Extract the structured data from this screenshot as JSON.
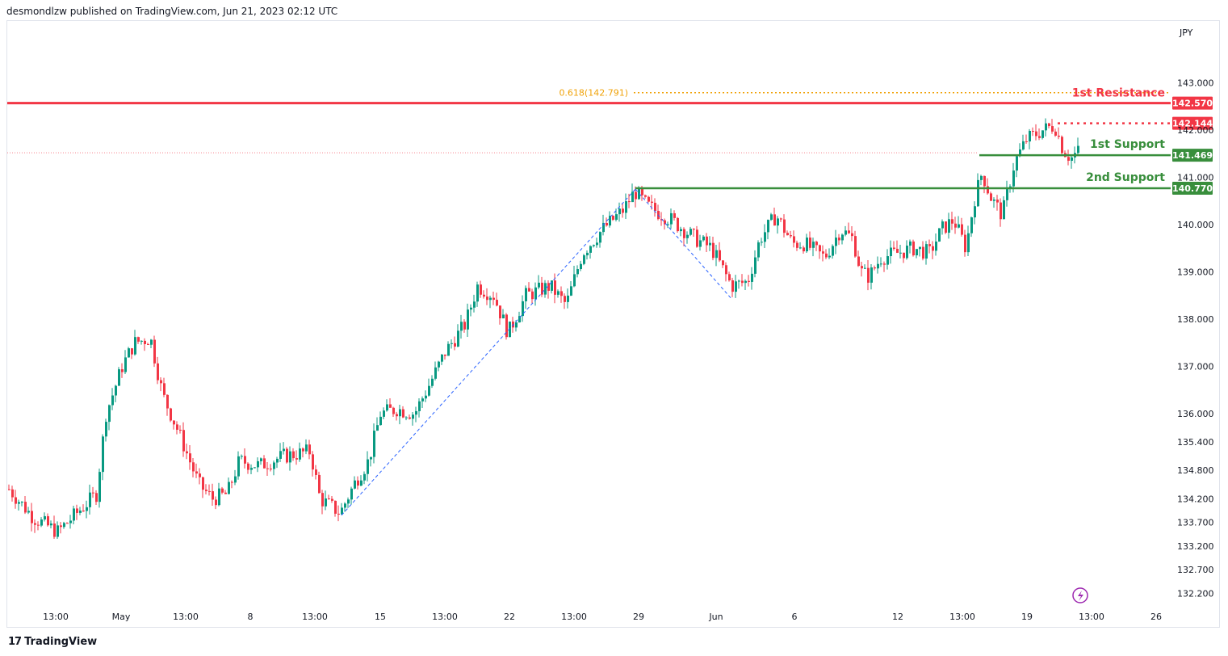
{
  "header": {
    "text": "desmondlzw published on TradingView.com, Jun 21, 2023 02:12 UTC"
  },
  "footer": {
    "logo": "17",
    "brand": "TradingView"
  },
  "chart_data": {
    "type": "candlestick",
    "currency": "JPY",
    "ylim": [
      131.9,
      144.6
    ],
    "y_ticks": [
      "132.200",
      "132.700",
      "133.200",
      "133.700",
      "134.200",
      "134.800",
      "135.400",
      "136.000",
      "137.000",
      "138.000",
      "139.000",
      "140.000",
      "141.000",
      "142.000",
      "143.000"
    ],
    "y_tick_values": [
      132.2,
      132.7,
      133.2,
      133.7,
      134.2,
      134.8,
      135.4,
      136.0,
      137.0,
      138.0,
      139.0,
      140.0,
      141.0,
      142.0,
      143.0
    ],
    "x_ticks": [
      "13:00",
      "May",
      "13:00",
      "8",
      "13:00",
      "15",
      "13:00",
      "22",
      "13:00",
      "29",
      "Jun",
      "6",
      "12",
      "13:00",
      "19",
      "13:00",
      "26"
    ],
    "levels": [
      {
        "name": "1st Resistance",
        "value": 142.57,
        "badge": "142.570",
        "color": "#f23645"
      },
      {
        "name": "1st Support",
        "value": 141.469,
        "badge": "141.469",
        "color": "#388e3c"
      },
      {
        "name": "2nd Support",
        "value": 140.77,
        "badge": "140.770",
        "color": "#388e3c"
      }
    ],
    "current_price": {
      "value": 142.144,
      "badge": "142.144",
      "color": "#f23645"
    },
    "fib": {
      "label": "0.618(142.791)",
      "value": 142.791,
      "color": "#f0a30a"
    },
    "colors": {
      "up": "#089981",
      "down": "#f23645",
      "fib_line": "#2962ff"
    }
  }
}
